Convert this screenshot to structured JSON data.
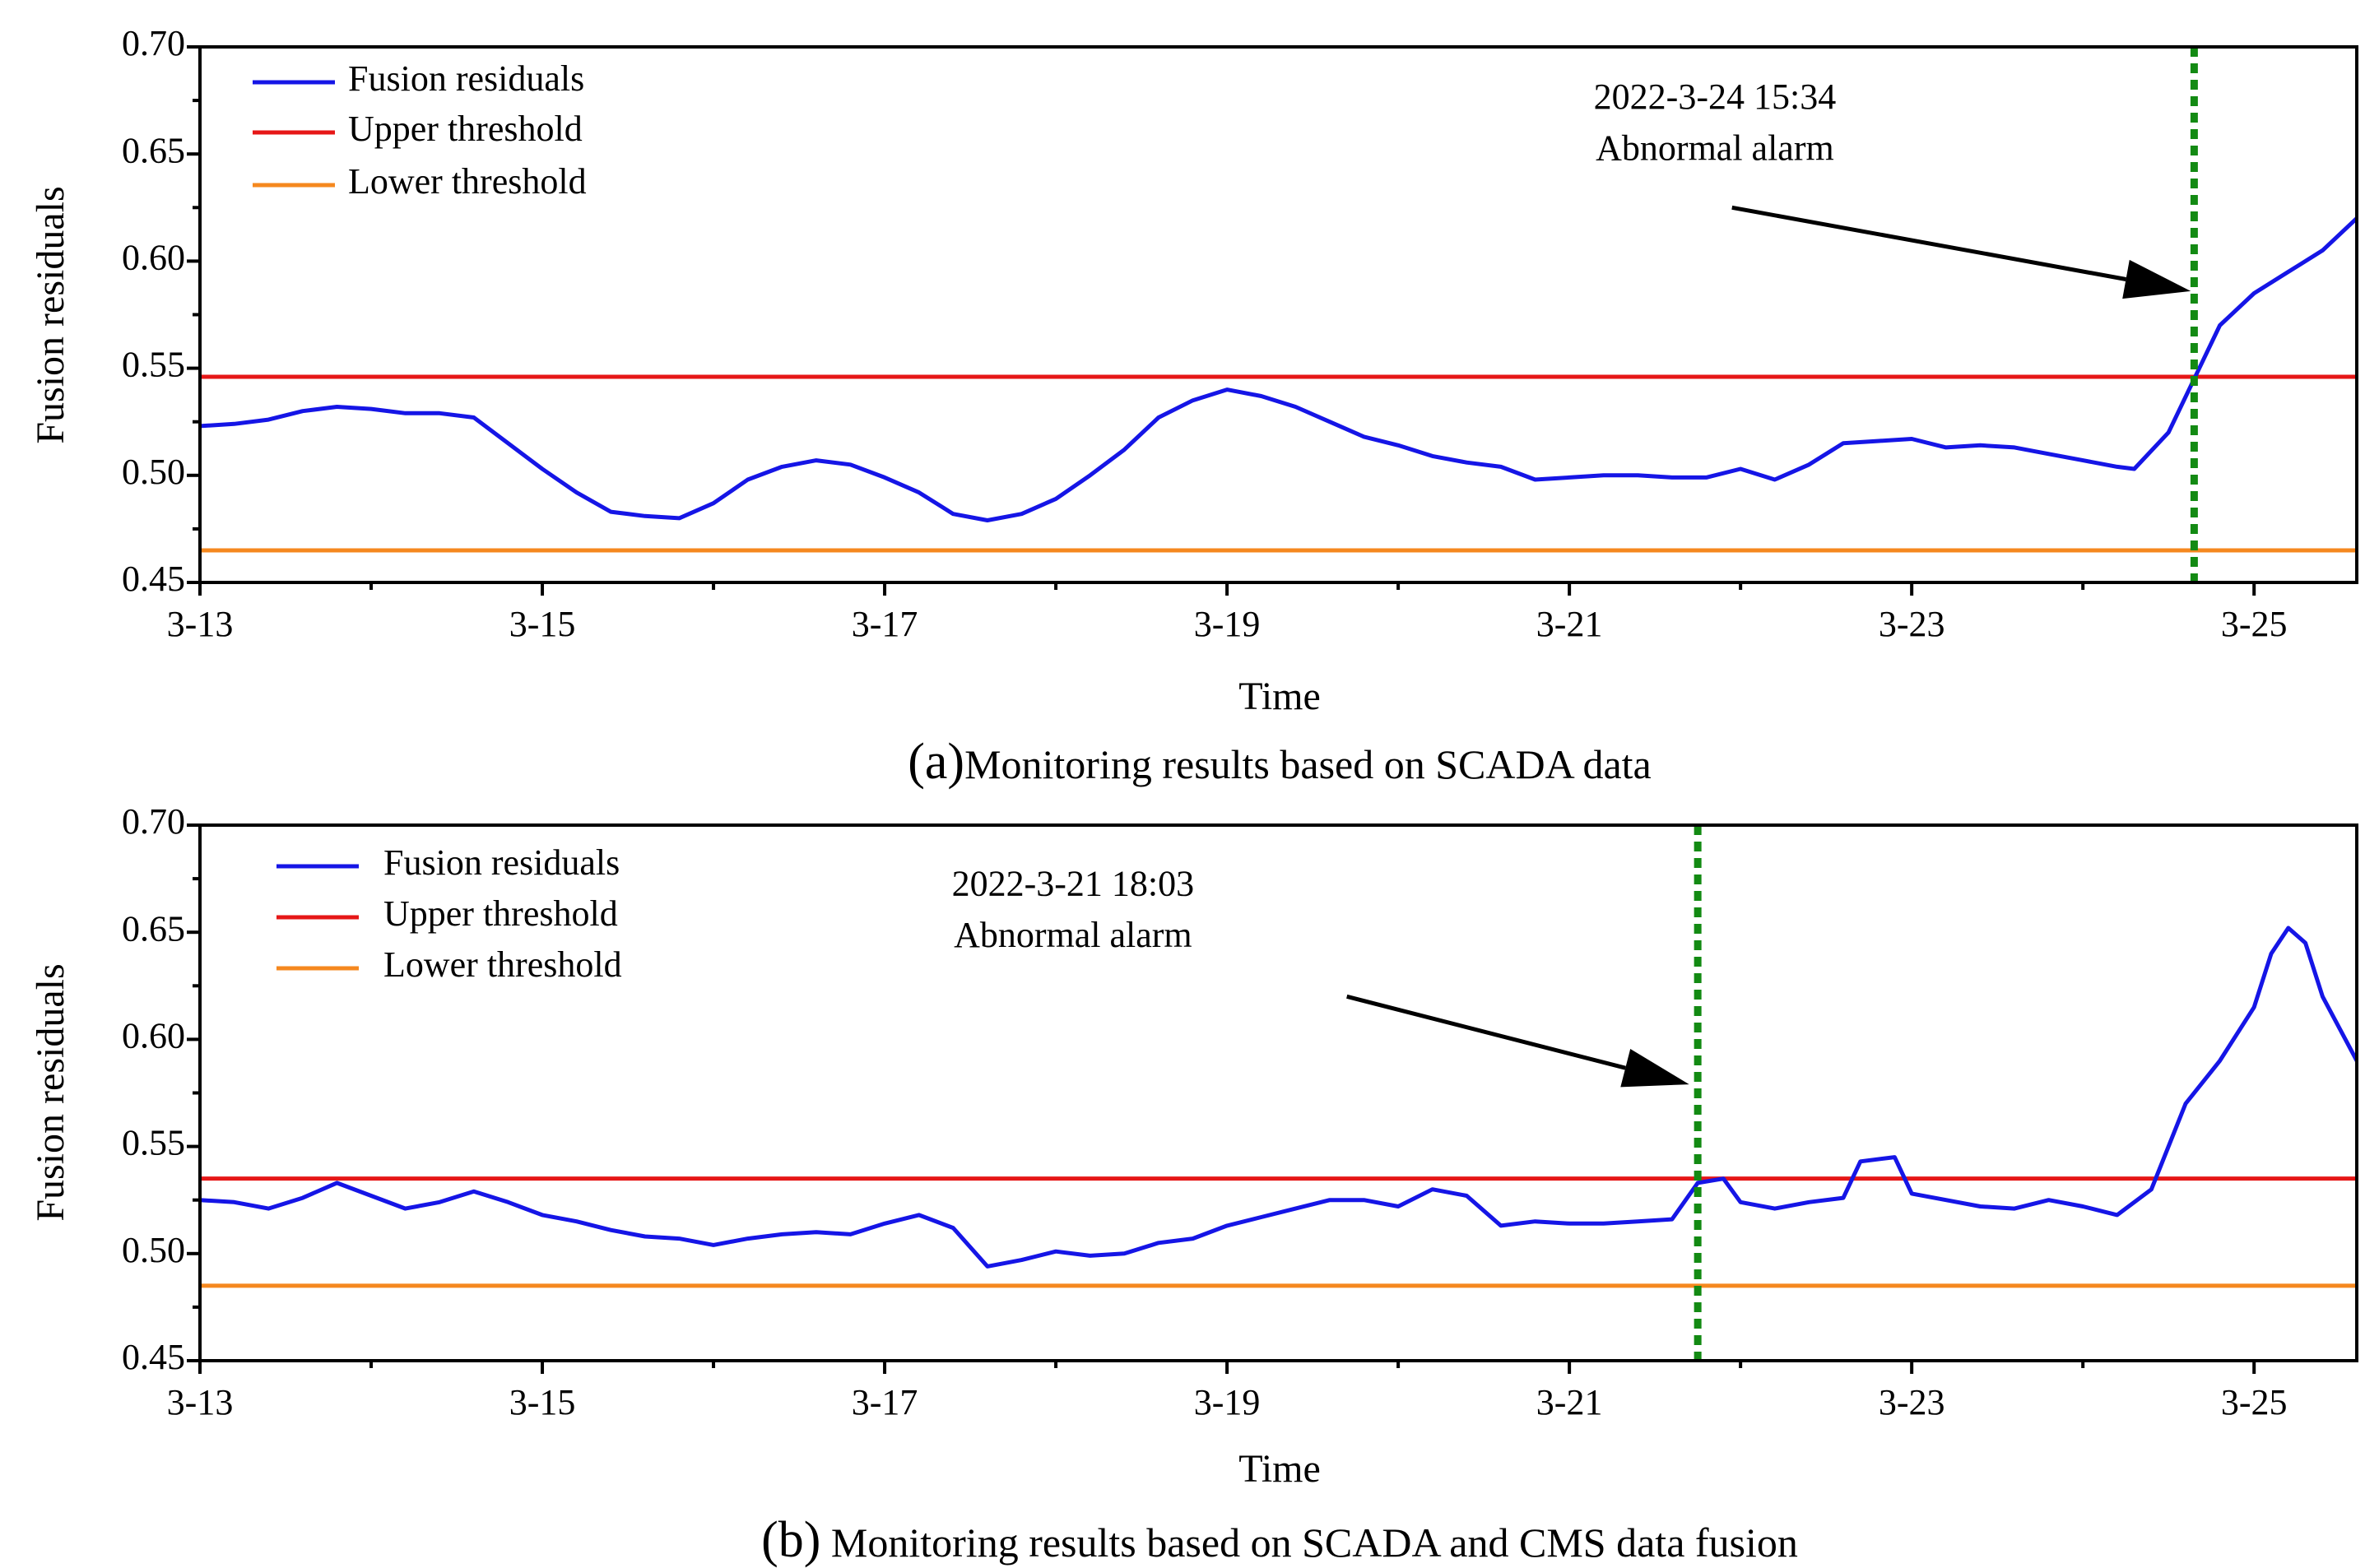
{
  "chart_data": [
    {
      "id": "a",
      "type": "line",
      "caption_letter": "(a)",
      "caption_text": "Monitoring results based on SCADA data",
      "xlabel": "Time",
      "ylabel": "Fusion residuals",
      "xlim": [
        13,
        25.6
      ],
      "ylim": [
        0.45,
        0.7
      ],
      "x_ticks": [
        13,
        15,
        17,
        19,
        21,
        23,
        25
      ],
      "x_tick_labels": [
        "3-13",
        "3-15",
        "3-17",
        "3-19",
        "3-21",
        "3-23",
        "3-25"
      ],
      "y_ticks": [
        0.45,
        0.5,
        0.55,
        0.6,
        0.65,
        0.7
      ],
      "y_tick_labels": [
        "0.45",
        "0.50",
        "0.55",
        "0.60",
        "0.65",
        "0.70"
      ],
      "legend": {
        "position": "top-left",
        "entries": [
          {
            "label": "Fusion residuals",
            "color": "#1515e6"
          },
          {
            "label": "Upper threshold",
            "color": "#e61717"
          },
          {
            "label": "Lower threshold",
            "color": "#f5881f"
          }
        ]
      },
      "upper_threshold": 0.546,
      "lower_threshold": 0.465,
      "alarm_x": 24.65,
      "alarm_color": "#138a13",
      "annotation": {
        "line1": "2022-3-24 15:34",
        "line2": "Abnormal alarm",
        "anchor_x": 21.85,
        "line1_y": 0.675,
        "line2_y": 0.651,
        "arrow_from": [
          21.95,
          0.625
        ],
        "arrow_to": [
          24.63,
          0.586
        ]
      },
      "series": [
        {
          "name": "Fusion residuals",
          "color": "#1515e6",
          "x": [
            13.0,
            13.2,
            13.4,
            13.6,
            13.8,
            14.0,
            14.2,
            14.4,
            14.6,
            14.8,
            15.0,
            15.2,
            15.4,
            15.6,
            15.8,
            16.0,
            16.2,
            16.4,
            16.6,
            16.8,
            17.0,
            17.2,
            17.4,
            17.6,
            17.8,
            18.0,
            18.2,
            18.4,
            18.6,
            18.8,
            19.0,
            19.2,
            19.4,
            19.6,
            19.8,
            20.0,
            20.2,
            20.4,
            20.6,
            20.8,
            21.0,
            21.2,
            21.4,
            21.6,
            21.8,
            22.0,
            22.2,
            22.4,
            22.6,
            22.8,
            23.0,
            23.2,
            23.4,
            23.6,
            23.8,
            24.0,
            24.2,
            24.3,
            24.5,
            24.65,
            24.8,
            25.0,
            25.2,
            25.4,
            25.6
          ],
          "y": [
            0.523,
            0.524,
            0.526,
            0.53,
            0.532,
            0.531,
            0.529,
            0.529,
            0.527,
            0.515,
            0.503,
            0.492,
            0.483,
            0.481,
            0.48,
            0.487,
            0.498,
            0.504,
            0.507,
            0.505,
            0.499,
            0.492,
            0.482,
            0.479,
            0.482,
            0.489,
            0.5,
            0.512,
            0.527,
            0.535,
            0.54,
            0.537,
            0.532,
            0.525,
            0.518,
            0.514,
            0.509,
            0.506,
            0.504,
            0.498,
            0.499,
            0.5,
            0.5,
            0.499,
            0.499,
            0.503,
            0.498,
            0.505,
            0.515,
            0.516,
            0.517,
            0.513,
            0.514,
            0.513,
            0.51,
            0.507,
            0.504,
            0.503,
            0.52,
            0.545,
            0.57,
            0.585,
            0.595,
            0.605,
            0.62
          ]
        }
      ]
    },
    {
      "id": "b",
      "type": "line",
      "caption_letter": "(b)",
      "caption_text": " Monitoring results based on SCADA and CMS data fusion",
      "xlabel": "Time",
      "ylabel": "Fusion residuals",
      "xlim": [
        13,
        25.6
      ],
      "ylim": [
        0.45,
        0.7
      ],
      "x_ticks": [
        13,
        15,
        17,
        19,
        21,
        23,
        25
      ],
      "x_tick_labels": [
        "3-13",
        "3-15",
        "3-17",
        "3-19",
        "3-21",
        "3-23",
        "3-25"
      ],
      "y_ticks": [
        0.45,
        0.5,
        0.55,
        0.6,
        0.65,
        0.7
      ],
      "y_tick_labels": [
        "0.45",
        "0.50",
        "0.55",
        "0.60",
        "0.65",
        "0.70"
      ],
      "legend": {
        "position": "top-left",
        "entries": [
          {
            "label": "Fusion residuals",
            "color": "#1515e6"
          },
          {
            "label": "Upper threshold",
            "color": "#e61717"
          },
          {
            "label": "Lower threshold",
            "color": "#f5881f"
          }
        ]
      },
      "upper_threshold": 0.535,
      "lower_threshold": 0.485,
      "alarm_x": 21.75,
      "alarm_color": "#138a13",
      "annotation": {
        "line1": "2022-3-21 18:03",
        "line2": "Abnormal alarm",
        "anchor_x": 18.1,
        "line1_y": 0.671,
        "line2_y": 0.647,
        "arrow_from": [
          19.7,
          0.62
        ],
        "arrow_to": [
          21.7,
          0.579
        ]
      },
      "series": [
        {
          "name": "Fusion residuals",
          "color": "#1515e6",
          "x": [
            13.0,
            13.2,
            13.4,
            13.6,
            13.8,
            14.0,
            14.2,
            14.4,
            14.6,
            14.8,
            15.0,
            15.2,
            15.4,
            15.6,
            15.8,
            16.0,
            16.2,
            16.4,
            16.6,
            16.8,
            17.0,
            17.2,
            17.4,
            17.6,
            17.8,
            18.0,
            18.2,
            18.4,
            18.6,
            18.8,
            19.0,
            19.2,
            19.4,
            19.6,
            19.8,
            20.0,
            20.2,
            20.4,
            20.6,
            20.8,
            21.0,
            21.2,
            21.4,
            21.6,
            21.75,
            21.9,
            22.0,
            22.2,
            22.4,
            22.6,
            22.7,
            22.9,
            23.0,
            23.2,
            23.4,
            23.6,
            23.8,
            24.0,
            24.2,
            24.4,
            24.6,
            24.8,
            25.0,
            25.1,
            25.2,
            25.3,
            25.4,
            25.6
          ],
          "y": [
            0.525,
            0.524,
            0.521,
            0.526,
            0.533,
            0.527,
            0.521,
            0.524,
            0.529,
            0.524,
            0.518,
            0.515,
            0.511,
            0.508,
            0.507,
            0.504,
            0.507,
            0.509,
            0.51,
            0.509,
            0.514,
            0.518,
            0.512,
            0.494,
            0.497,
            0.501,
            0.499,
            0.5,
            0.505,
            0.507,
            0.513,
            0.517,
            0.521,
            0.525,
            0.525,
            0.522,
            0.53,
            0.527,
            0.513,
            0.515,
            0.514,
            0.514,
            0.515,
            0.516,
            0.533,
            0.535,
            0.524,
            0.521,
            0.524,
            0.526,
            0.543,
            0.545,
            0.528,
            0.525,
            0.522,
            0.521,
            0.525,
            0.522,
            0.518,
            0.53,
            0.57,
            0.59,
            0.615,
            0.64,
            0.652,
            0.645,
            0.62,
            0.59
          ]
        }
      ]
    }
  ]
}
